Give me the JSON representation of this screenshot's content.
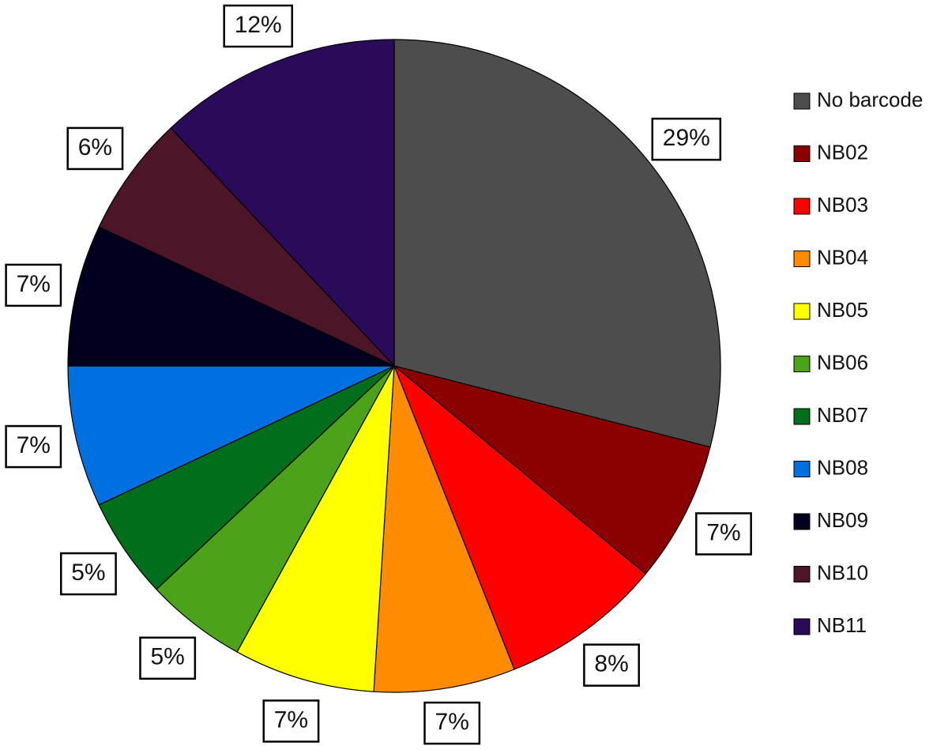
{
  "chart_data": {
    "type": "pie",
    "categories": [
      "No barcode",
      "NB02",
      "NB03",
      "NB04",
      "NB05",
      "NB06",
      "NB07",
      "NB08",
      "NB09",
      "NB10",
      "NB11"
    ],
    "values": [
      29,
      7,
      8,
      7,
      7,
      5,
      5,
      7,
      7,
      6,
      12
    ],
    "value_labels": [
      "29%",
      "7%",
      "8%",
      "7%",
      "7%",
      "5%",
      "5%",
      "7%",
      "7%",
      "6%",
      "12%"
    ],
    "colors": [
      "#4d4d4d",
      "#8b0000",
      "#ff0000",
      "#ff8c00",
      "#ffff00",
      "#4ca319",
      "#006e1a",
      "#0070e0",
      "#00001e",
      "#4d1628",
      "#2a0a5a"
    ],
    "legend": "right"
  }
}
